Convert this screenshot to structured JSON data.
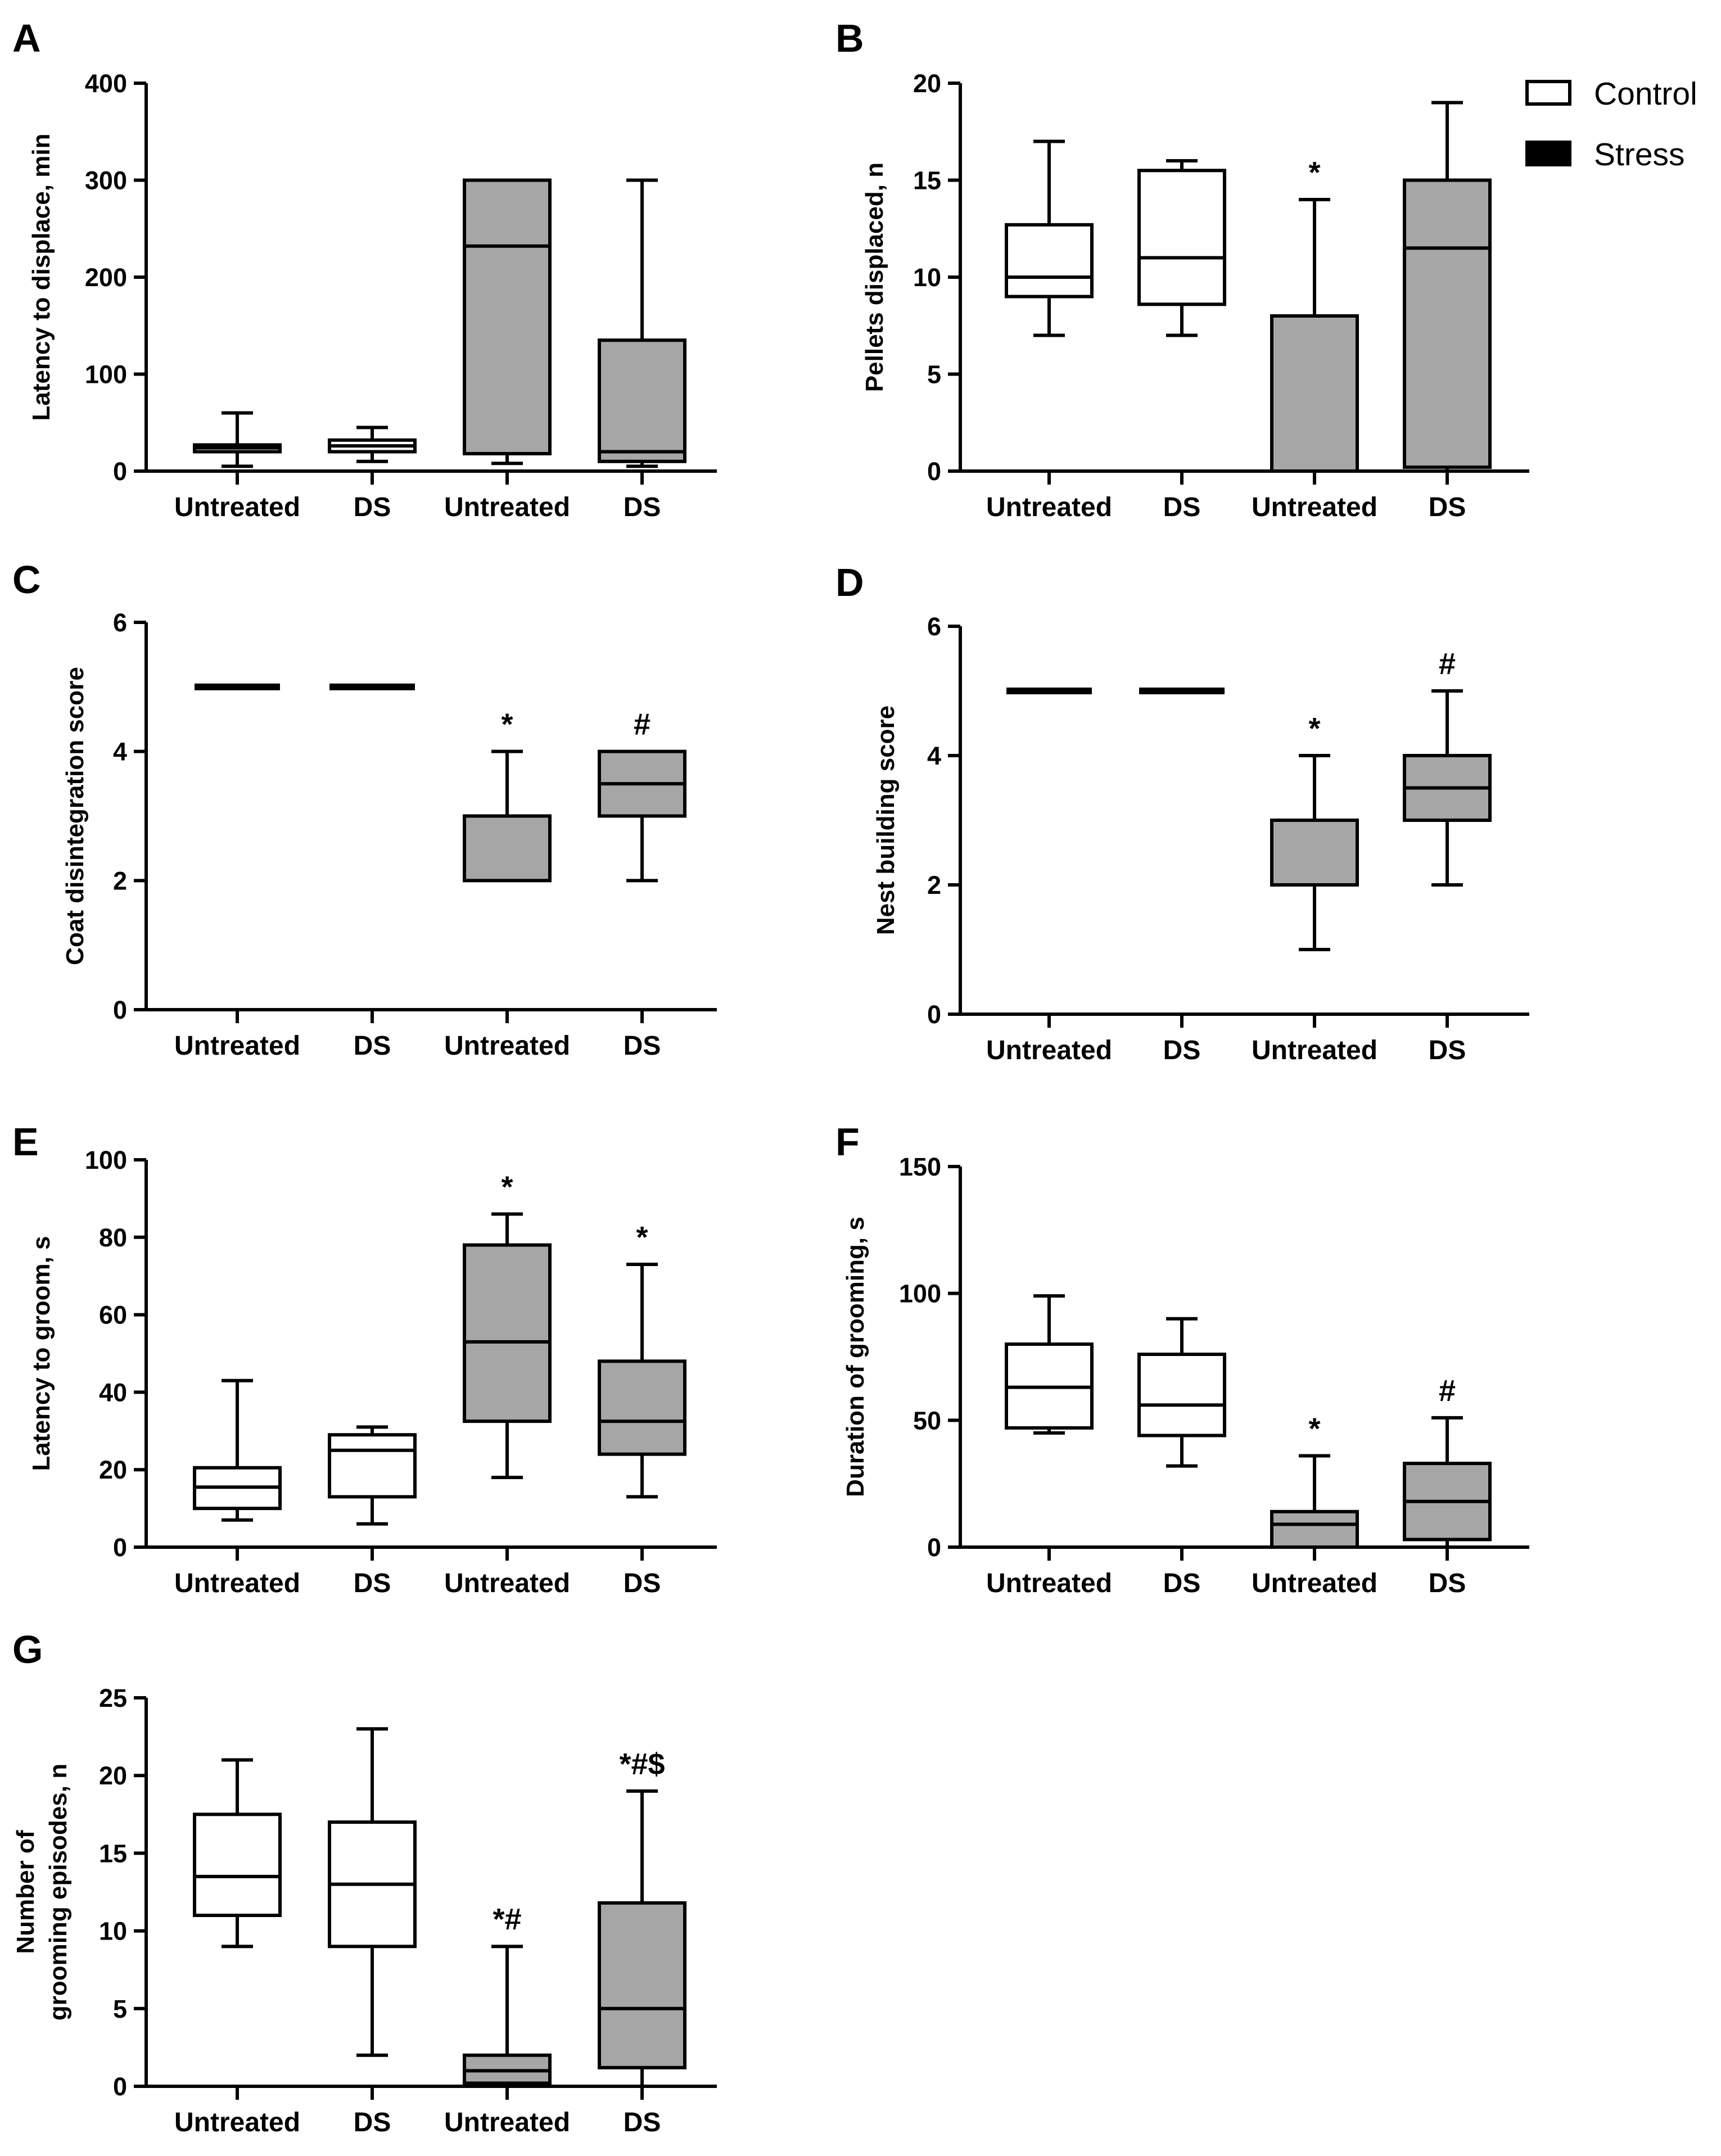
{
  "figure": {
    "legend": {
      "entries": [
        {
          "label": "Control",
          "fill": "#ffffff"
        },
        {
          "label": "Stress",
          "fill": "#000000"
        }
      ]
    },
    "colors": {
      "control_box": "#ffffff",
      "stress_box": "#a6a6a6",
      "stroke": "#000000"
    }
  },
  "chart_data": [
    {
      "panel": "A",
      "type": "box",
      "ylabel": "Latency to displace, min",
      "categories": [
        "Untreated",
        "DS",
        "Untreated",
        "DS"
      ],
      "groups": [
        "Control",
        "Control",
        "Stress",
        "Stress"
      ],
      "ylim": [
        0,
        400
      ],
      "yticks": [
        0,
        100,
        200,
        300,
        400
      ],
      "boxes": [
        {
          "min": 5,
          "q1": 20,
          "median": 24,
          "q3": 27,
          "max": 60
        },
        {
          "min": 10,
          "q1": 20,
          "median": 26,
          "q3": 32,
          "max": 45
        },
        {
          "min": 8,
          "q1": 18,
          "median": 232,
          "q3": 300,
          "max": 300
        },
        {
          "min": 5,
          "q1": 10,
          "median": 20,
          "q3": 135,
          "max": 300
        }
      ],
      "annotations": [
        "",
        "",
        "",
        ""
      ]
    },
    {
      "panel": "B",
      "type": "box",
      "ylabel": "Pellets displaced, n",
      "categories": [
        "Untreated",
        "DS",
        "Untreated",
        "DS"
      ],
      "groups": [
        "Control",
        "Control",
        "Stress",
        "Stress"
      ],
      "ylim": [
        0,
        20
      ],
      "yticks": [
        0,
        5,
        10,
        15,
        20
      ],
      "boxes": [
        {
          "min": 7,
          "q1": 9,
          "median": 10,
          "q3": 12.7,
          "max": 17
        },
        {
          "min": 7,
          "q1": 8.6,
          "median": 11,
          "q3": 15.5,
          "max": 16
        },
        {
          "min": 0,
          "q1": 0,
          "median": 0,
          "q3": 8,
          "max": 14
        },
        {
          "min": 0,
          "q1": 0.2,
          "median": 11.5,
          "q3": 15,
          "max": 19
        }
      ],
      "annotations": [
        "",
        "",
        "*",
        ""
      ]
    },
    {
      "panel": "C",
      "type": "box",
      "ylabel": "Coat disintegration score",
      "categories": [
        "Untreated",
        "DS",
        "Untreated",
        "DS"
      ],
      "groups": [
        "Control",
        "Control",
        "Stress",
        "Stress"
      ],
      "ylim": [
        0,
        6
      ],
      "yticks": [
        0,
        2,
        4,
        6
      ],
      "boxes": [
        {
          "min": 5,
          "q1": 5,
          "median": 5,
          "q3": 5,
          "max": 5
        },
        {
          "min": 5,
          "q1": 5,
          "median": 5,
          "q3": 5,
          "max": 5
        },
        {
          "min": 2,
          "q1": 2,
          "median": 3,
          "q3": 3,
          "max": 4
        },
        {
          "min": 2,
          "q1": 3,
          "median": 3.5,
          "q3": 4,
          "max": 4
        }
      ],
      "annotations": [
        "",
        "",
        "*",
        "#"
      ]
    },
    {
      "panel": "D",
      "type": "box",
      "ylabel": "Nest building score",
      "categories": [
        "Untreated",
        "DS",
        "Untreated",
        "DS"
      ],
      "groups": [
        "Control",
        "Control",
        "Stress",
        "Stress"
      ],
      "ylim": [
        0,
        6
      ],
      "yticks": [
        0,
        2,
        4,
        6
      ],
      "boxes": [
        {
          "min": 5,
          "q1": 5,
          "median": 5,
          "q3": 5,
          "max": 5
        },
        {
          "min": 5,
          "q1": 5,
          "median": 5,
          "q3": 5,
          "max": 5
        },
        {
          "min": 1,
          "q1": 2,
          "median": 2,
          "q3": 3,
          "max": 4
        },
        {
          "min": 2,
          "q1": 3,
          "median": 3.5,
          "q3": 4,
          "max": 5
        }
      ],
      "annotations": [
        "",
        "",
        "*",
        "#"
      ]
    },
    {
      "panel": "E",
      "type": "box",
      "ylabel": "Latency to groom, s",
      "categories": [
        "Untreated",
        "DS",
        "Untreated",
        "DS"
      ],
      "groups": [
        "Control",
        "Control",
        "Stress",
        "Stress"
      ],
      "ylim": [
        0,
        100
      ],
      "yticks": [
        0,
        20,
        40,
        60,
        80,
        100
      ],
      "boxes": [
        {
          "min": 7,
          "q1": 10,
          "median": 15.5,
          "q3": 20.5,
          "max": 43
        },
        {
          "min": 6,
          "q1": 13,
          "median": 25,
          "q3": 29,
          "max": 31
        },
        {
          "min": 18,
          "q1": 32.5,
          "median": 53,
          "q3": 78,
          "max": 86
        },
        {
          "min": 13,
          "q1": 24,
          "median": 32.5,
          "q3": 48,
          "max": 73
        }
      ],
      "annotations": [
        "",
        "",
        "*",
        "*"
      ]
    },
    {
      "panel": "F",
      "type": "box",
      "ylabel": "Duration of grooming, s",
      "categories": [
        "Untreated",
        "DS",
        "Untreated",
        "DS"
      ],
      "groups": [
        "Control",
        "Control",
        "Stress",
        "Stress"
      ],
      "ylim": [
        0,
        150
      ],
      "yticks": [
        0,
        50,
        100,
        150
      ],
      "boxes": [
        {
          "min": 45,
          "q1": 47,
          "median": 63,
          "q3": 80,
          "max": 99
        },
        {
          "min": 32,
          "q1": 44,
          "median": 56,
          "q3": 76,
          "max": 90
        },
        {
          "min": 0,
          "q1": 0,
          "median": 9,
          "q3": 14,
          "max": 36
        },
        {
          "min": 0,
          "q1": 3,
          "median": 18,
          "q3": 33,
          "max": 51
        }
      ],
      "annotations": [
        "",
        "",
        "*",
        "#"
      ]
    },
    {
      "panel": "G",
      "type": "box",
      "ylabel_lines": [
        "Number of",
        "grooming episodes, n"
      ],
      "categories": [
        "Untreated",
        "DS",
        "Untreated",
        "DS"
      ],
      "groups": [
        "Control",
        "Control",
        "Stress",
        "Stress"
      ],
      "ylim": [
        0,
        25
      ],
      "yticks": [
        0,
        5,
        10,
        15,
        20,
        25
      ],
      "boxes": [
        {
          "min": 9,
          "q1": 11,
          "median": 13.5,
          "q3": 17.5,
          "max": 21
        },
        {
          "min": 2,
          "q1": 9,
          "median": 13,
          "q3": 17,
          "max": 23
        },
        {
          "min": 0,
          "q1": 0.2,
          "median": 1,
          "q3": 2,
          "max": 9
        },
        {
          "min": 0,
          "q1": 1.2,
          "median": 5,
          "q3": 11.8,
          "max": 19
        }
      ],
      "annotations": [
        "",
        "",
        "*#",
        "*#$"
      ]
    }
  ]
}
